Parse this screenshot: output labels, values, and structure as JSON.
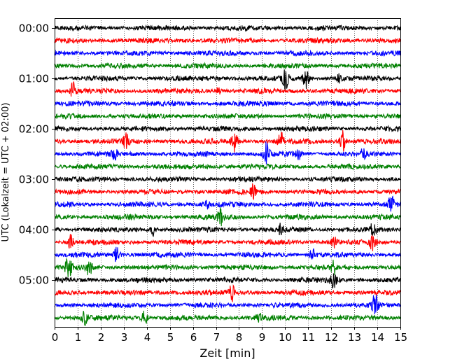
{
  "chart_data": {
    "type": "line",
    "title": "",
    "xlabel": "Zeit  [min]",
    "ylabel": "UTC (Lokalzeit = UTC + 02:00)",
    "xlim": [
      0,
      15
    ],
    "xticks": [
      0,
      1,
      2,
      3,
      4,
      5,
      6,
      7,
      8,
      9,
      10,
      11,
      12,
      13,
      14,
      15
    ],
    "y_tick_labels": [
      "00:00",
      "01:00",
      "02:00",
      "03:00",
      "04:00",
      "05:00"
    ],
    "trace_start_times_utc": [
      "00:00",
      "00:15",
      "00:30",
      "00:45",
      "01:00",
      "01:15",
      "01:30",
      "01:45",
      "02:00",
      "02:15",
      "02:30",
      "02:45",
      "03:00",
      "03:15",
      "03:30",
      "03:45",
      "04:00",
      "04:15",
      "04:30",
      "04:45",
      "05:00",
      "05:15",
      "05:30",
      "05:45"
    ],
    "trace_colors": [
      "#000000",
      "#ff0000",
      "#0000ff",
      "#008000"
    ],
    "grid": {
      "x": true,
      "style": "dotted"
    },
    "legend": "none",
    "bursts": [
      {
        "row": 4,
        "t": 10.0,
        "amp": 1.9
      },
      {
        "row": 4,
        "t": 10.9,
        "amp": 1.6
      },
      {
        "row": 4,
        "t": 12.3,
        "amp": 0.6
      },
      {
        "row": 5,
        "t": 0.8,
        "amp": 1.2
      },
      {
        "row": 5,
        "t": 7.1,
        "amp": 0.5
      },
      {
        "row": 9,
        "t": 3.1,
        "amp": 1.0
      },
      {
        "row": 9,
        "t": 7.8,
        "amp": 1.6
      },
      {
        "row": 9,
        "t": 9.8,
        "amp": 1.5
      },
      {
        "row": 9,
        "t": 12.5,
        "amp": 1.6
      },
      {
        "row": 10,
        "t": 2.6,
        "amp": 0.7
      },
      {
        "row": 10,
        "t": 9.2,
        "amp": 2.0
      },
      {
        "row": 10,
        "t": 10.6,
        "amp": 0.8
      },
      {
        "row": 10,
        "t": 13.4,
        "amp": 0.8
      },
      {
        "row": 13,
        "t": 8.6,
        "amp": 1.0
      },
      {
        "row": 14,
        "t": 6.6,
        "amp": 0.5
      },
      {
        "row": 14,
        "t": 14.6,
        "amp": 1.2
      },
      {
        "row": 15,
        "t": 7.2,
        "amp": 1.2
      },
      {
        "row": 16,
        "t": 4.3,
        "amp": 0.9
      },
      {
        "row": 16,
        "t": 9.8,
        "amp": 0.7
      },
      {
        "row": 16,
        "t": 13.8,
        "amp": 0.9
      },
      {
        "row": 17,
        "t": 0.7,
        "amp": 1.2
      },
      {
        "row": 17,
        "t": 12.1,
        "amp": 0.9
      },
      {
        "row": 17,
        "t": 13.8,
        "amp": 1.3
      },
      {
        "row": 18,
        "t": 2.7,
        "amp": 1.2
      },
      {
        "row": 18,
        "t": 11.2,
        "amp": 1.0
      },
      {
        "row": 19,
        "t": 0.6,
        "amp": 1.8
      },
      {
        "row": 19,
        "t": 1.5,
        "amp": 1.2
      },
      {
        "row": 19,
        "t": 12.1,
        "amp": 1.0
      },
      {
        "row": 20,
        "t": 12.1,
        "amp": 1.1
      },
      {
        "row": 21,
        "t": 7.7,
        "amp": 1.2
      },
      {
        "row": 22,
        "t": 13.9,
        "amp": 1.6
      },
      {
        "row": 23,
        "t": 1.3,
        "amp": 1.0
      },
      {
        "row": 23,
        "t": 3.9,
        "amp": 1.3
      },
      {
        "row": 23,
        "t": 8.9,
        "amp": 0.7
      }
    ]
  }
}
